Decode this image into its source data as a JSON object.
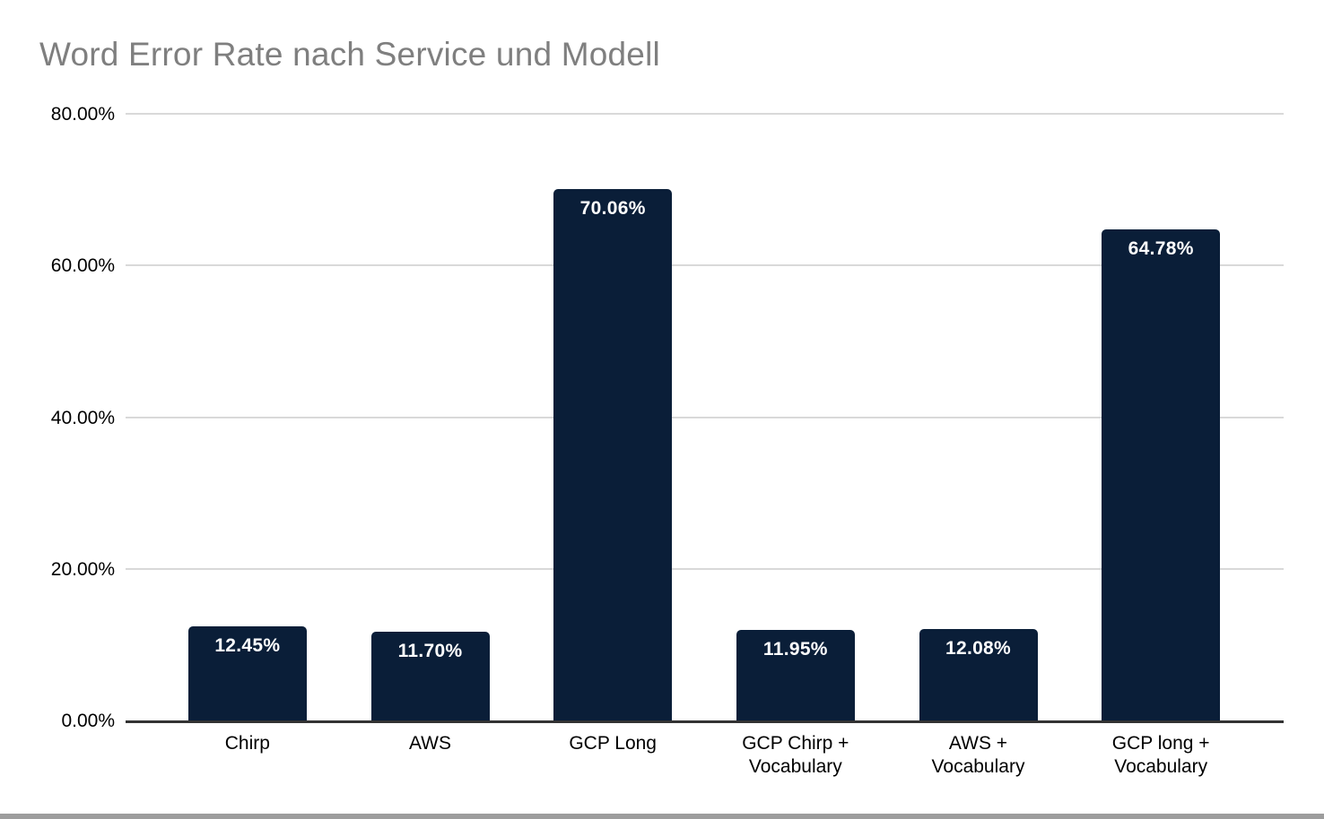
{
  "page": {
    "background": "#ffffff",
    "bottom_strip_color": "#9d9d9d"
  },
  "chart_data": {
    "type": "bar",
    "title": "Word Error Rate nach Service und Modell",
    "categories": [
      "Chirp",
      "AWS",
      "GCP Long",
      "GCP Chirp +\nVocabulary",
      "AWS +\nVocabulary",
      "GCP long +\nVocabulary"
    ],
    "values": [
      12.45,
      11.7,
      70.06,
      11.95,
      12.08,
      64.78
    ],
    "value_labels": [
      "12.45%",
      "11.70%",
      "70.06%",
      "11.95%",
      "12.08%",
      "64.78%"
    ],
    "xlabel": "",
    "ylabel": "",
    "ylim": [
      0,
      80
    ],
    "y_ticks": [
      {
        "value": 0,
        "label": "0.00%"
      },
      {
        "value": 20,
        "label": "20.00%"
      },
      {
        "value": 40,
        "label": "40.00%"
      },
      {
        "value": 60,
        "label": "60.00%"
      },
      {
        "value": 80,
        "label": "80.00%"
      }
    ],
    "grid": true,
    "legend_position": "none",
    "colors": {
      "bar": "#0a1e38",
      "bar_label": "#ffffff",
      "title": "#7f7f7f",
      "axis_line": "#333333",
      "gridline": "#d9d9d9",
      "tick_label": "#000000"
    }
  }
}
